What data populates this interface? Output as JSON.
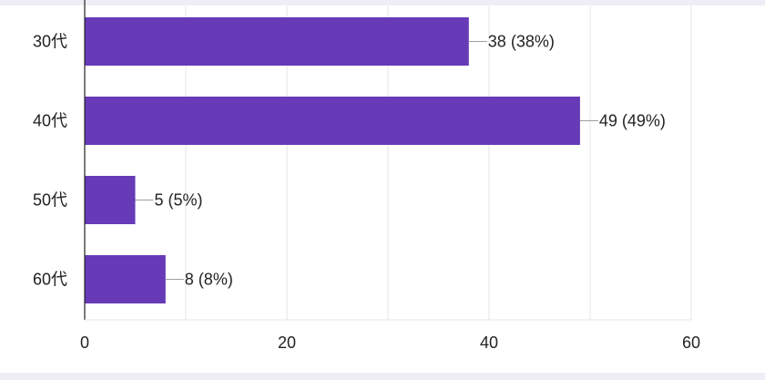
{
  "chart_data": {
    "type": "bar",
    "orientation": "horizontal",
    "categories": [
      "30代",
      "40代",
      "50代",
      "60代"
    ],
    "values": [
      38,
      49,
      5,
      8
    ],
    "data_labels": [
      "38 (38%)",
      "49 (49%)",
      "5 (5%)",
      "8 (8%)"
    ],
    "x_ticks": [
      "0",
      "20",
      "40",
      "60"
    ],
    "xlim": [
      0,
      60
    ],
    "grid": true,
    "bar_color": "#673ab7",
    "grid_color": "#e6e6e6",
    "axis_color": "#222222"
  }
}
